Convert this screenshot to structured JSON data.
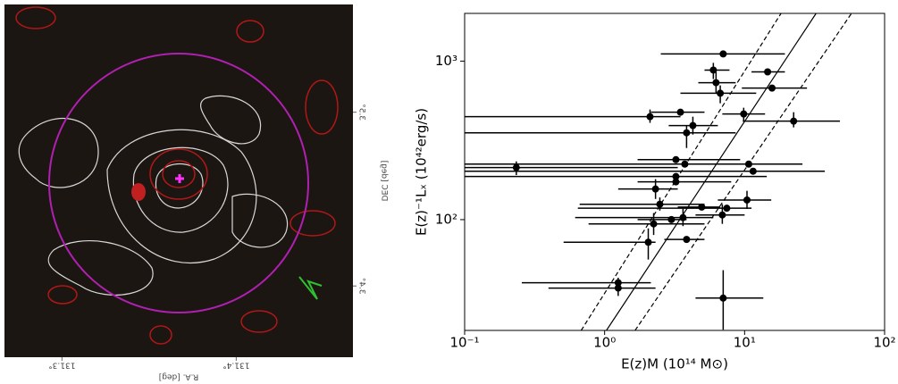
{
  "chart_data": [
    {
      "type": "image",
      "xlabel": "R.A. [deg]",
      "ylabel": "DEC [deg]",
      "xlim": [
        131.267,
        131.467
      ],
      "ylim": [
        3.359,
        3.562
      ],
      "xticks": [
        {
          "value": 131.3,
          "label": "131.3°"
        },
        {
          "value": 131.4,
          "label": "131.4°"
        }
      ],
      "yticks": [
        {
          "value": 3.5,
          "label": "3.5°"
        },
        {
          "value": 3.4,
          "label": "3.4°"
        }
      ],
      "mirrored": true
    },
    {
      "type": "scatter",
      "xlabel": "E(z)M (10¹⁴ M⊙)",
      "ylabel": "E(z)⁻¹Lₓ (10⁴²erg/s)",
      "xscale": "log",
      "yscale": "log",
      "xlim": [
        0.1,
        100
      ],
      "ylim": [
        20,
        2000
      ],
      "xticks": [
        {
          "value": 0.1,
          "label": "10⁻¹"
        },
        {
          "value": 1,
          "label": "10⁰"
        },
        {
          "value": 10,
          "label": "10¹"
        },
        {
          "value": 100,
          "label": "10²"
        }
      ],
      "yticks": [
        {
          "value": 100,
          "label": "10²"
        },
        {
          "value": 1000,
          "label": "10³"
        }
      ],
      "series": [
        {
          "color": "#000000",
          "x": [
            7.03,
            5.98,
            14.6,
            6.25,
            6.7,
            15.7,
            9.85,
            2.11,
            3.48,
            4.27,
            3.85,
            22.4,
            0.234,
            3.23,
            3.74,
            10.7,
            3.23,
            11.5,
            3.23,
            2.31,
            2.48,
            7.46,
            10.4,
            4.94,
            3.63,
            6.93,
            2.24,
            3.0,
            2.05,
            3.85,
            1.25,
            1.25,
            7.03
          ],
          "values": [
            1110,
            878,
            855,
            731,
            627,
            676,
            464,
            446,
            476,
            392,
            353,
            418,
            213,
            239,
            224,
            224,
            187,
            202,
            173,
            156,
            125,
            118,
            133,
            120,
            103,
            107,
            94,
            100,
            72,
            75,
            40,
            37,
            32
          ],
          "x_range": [
            [
              2.52,
              19.4
            ],
            [
              5.17,
              7.8
            ],
            [
              11.2,
              19.4
            ],
            [
              4.67,
              8.63
            ],
            [
              3.48,
              12.1
            ],
            [
              9.56,
              27.9
            ],
            [
              6.93,
              14.0
            ],
            [
              0.1,
              3.48
            ],
            [
              2.14,
              5.17
            ],
            [
              2.87,
              6.44
            ],
            [
              0.1,
              8.63
            ],
            [
              9.7,
              48.0
            ],
            [
              0.1,
              3.33
            ],
            [
              1.72,
              9.29
            ],
            [
              0.1,
              24.1
            ],
            [
              6.16,
              25.9
            ],
            [
              0.1,
              14.4
            ],
            [
              0.1,
              37.4
            ],
            [
              1.72,
              8.02
            ],
            [
              1.25,
              3.33
            ],
            [
              0.663,
              5.17
            ],
            [
              0.644,
              11.2
            ],
            [
              6.44,
              15.5
            ],
            [
              3.33,
              6.7
            ],
            [
              0.616,
              5.98
            ],
            [
              4.46,
              10.0
            ],
            [
              0.768,
              5.17
            ],
            [
              1.72,
              3.85
            ],
            [
              0.509,
              2.31
            ],
            [
              2.67,
              5.17
            ],
            [
              0.256,
              2.14
            ],
            [
              0.397,
              2.31
            ],
            [
              4.46,
              13.6
            ]
          ],
          "y_range": [
            null,
            [
              975,
              771
            ],
            null,
            [
              855,
              627
            ],
            [
              703,
              542
            ],
            null,
            [
              508,
              418
            ],
            [
              495,
              408
            ],
            null,
            [
              446,
              344
            ],
            [
              392,
              283
            ],
            [
              476,
              382
            ],
            [
              233,
              191
            ],
            null,
            null,
            null,
            null,
            null,
            null,
            [
              180,
              135
            ],
            [
              138,
              114
            ],
            null,
            [
              152,
              117
            ],
            null,
            [
              117,
              91
            ],
            [
              125,
              94
            ],
            [
              110,
              80
            ],
            null,
            [
              88,
              56
            ],
            null,
            null,
            [
              43,
              33
            ],
            [
              48,
              20.2
            ]
          ]
        }
      ],
      "lines": [
        {
          "style": "dashed",
          "color": "#000000",
          "x": [
            0.68,
            18.2
          ],
          "values": [
            20,
            2000
          ]
        },
        {
          "style": "solid",
          "color": "#000000",
          "x": [
            1.03,
            32.4
          ],
          "values": [
            20,
            2000
          ]
        },
        {
          "style": "dashed",
          "color": "#000000",
          "x": [
            1.65,
            58
          ],
          "values": [
            20,
            2000
          ]
        }
      ]
    }
  ]
}
